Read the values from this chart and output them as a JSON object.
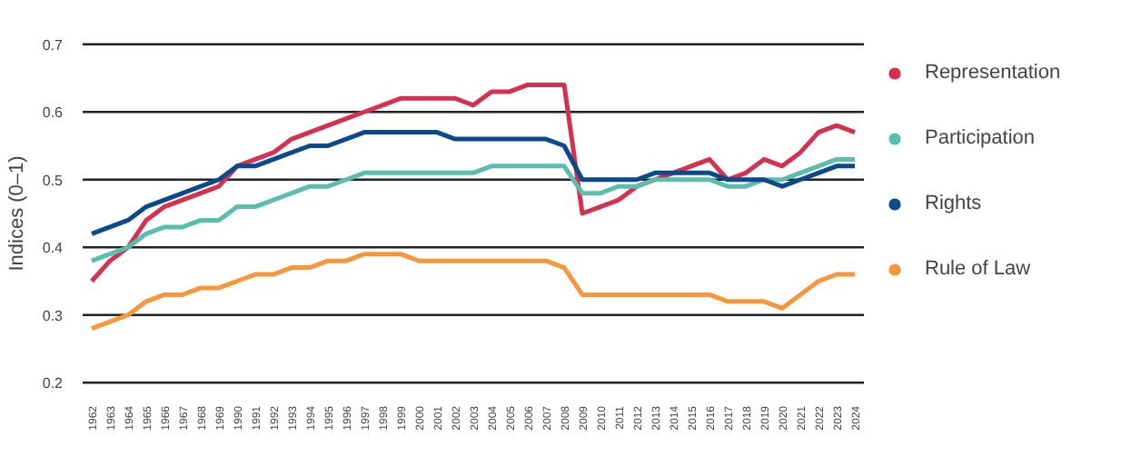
{
  "chart_data": {
    "type": "line",
    "ylabel": "Indices (0–1)",
    "categories": [
      "1962",
      "1963",
      "1964",
      "1965",
      "1966",
      "1967",
      "1968",
      "1969",
      "1990",
      "1991",
      "1992",
      "1993",
      "1994",
      "1995",
      "1996",
      "1997",
      "1998",
      "1999",
      "2000",
      "2001",
      "2002",
      "2003",
      "2004",
      "2005",
      "2006",
      "2007",
      "2008",
      "2009",
      "2010",
      "2011",
      "2012",
      "2013",
      "2014",
      "2015",
      "2016",
      "2017",
      "2018",
      "2019",
      "2020",
      "2021",
      "2022",
      "2023",
      "2024"
    ],
    "series": [
      {
        "name": "Representation",
        "color": "#d6304f",
        "values": [
          0.35,
          0.38,
          0.4,
          0.44,
          0.46,
          0.47,
          0.48,
          0.49,
          0.52,
          0.53,
          0.54,
          0.56,
          0.57,
          0.58,
          0.59,
          0.6,
          0.61,
          0.62,
          0.62,
          0.62,
          0.62,
          0.61,
          0.63,
          0.63,
          0.64,
          0.64,
          0.64,
          0.45,
          0.46,
          0.47,
          0.49,
          0.5,
          0.51,
          0.52,
          0.53,
          0.5,
          0.51,
          0.53,
          0.52,
          0.54,
          0.57,
          0.58,
          0.57
        ]
      },
      {
        "name": "Participation",
        "color": "#5bbcb0",
        "values": [
          0.38,
          0.39,
          0.4,
          0.42,
          0.43,
          0.43,
          0.44,
          0.44,
          0.46,
          0.46,
          0.47,
          0.48,
          0.49,
          0.49,
          0.5,
          0.51,
          0.51,
          0.51,
          0.51,
          0.51,
          0.51,
          0.51,
          0.52,
          0.52,
          0.52,
          0.52,
          0.52,
          0.48,
          0.48,
          0.49,
          0.49,
          0.5,
          0.5,
          0.5,
          0.5,
          0.49,
          0.49,
          0.5,
          0.5,
          0.51,
          0.52,
          0.53,
          0.53
        ]
      },
      {
        "name": "Rights",
        "color": "#0a4a8c",
        "values": [
          0.42,
          0.43,
          0.44,
          0.46,
          0.47,
          0.48,
          0.49,
          0.5,
          0.52,
          0.52,
          0.53,
          0.54,
          0.55,
          0.55,
          0.56,
          0.57,
          0.57,
          0.57,
          0.57,
          0.57,
          0.56,
          0.56,
          0.56,
          0.56,
          0.56,
          0.56,
          0.55,
          0.5,
          0.5,
          0.5,
          0.5,
          0.51,
          0.51,
          0.51,
          0.51,
          0.5,
          0.5,
          0.5,
          0.49,
          0.5,
          0.51,
          0.52,
          0.52
        ]
      },
      {
        "name": "Rule of Law",
        "color": "#f7963a",
        "values": [
          0.28,
          0.29,
          0.3,
          0.32,
          0.33,
          0.33,
          0.34,
          0.34,
          0.35,
          0.36,
          0.36,
          0.37,
          0.37,
          0.38,
          0.38,
          0.39,
          0.39,
          0.39,
          0.38,
          0.38,
          0.38,
          0.38,
          0.38,
          0.38,
          0.38,
          0.38,
          0.37,
          0.33,
          0.33,
          0.33,
          0.33,
          0.33,
          0.33,
          0.33,
          0.33,
          0.32,
          0.32,
          0.32,
          0.31,
          0.33,
          0.35,
          0.36,
          0.36
        ]
      }
    ],
    "ylim": [
      0.2,
      0.7
    ],
    "yticks": [
      0.2,
      0.3,
      0.4,
      0.5,
      0.6,
      0.7
    ],
    "grid": "y",
    "legend": "right",
    "line_style": "solid"
  }
}
